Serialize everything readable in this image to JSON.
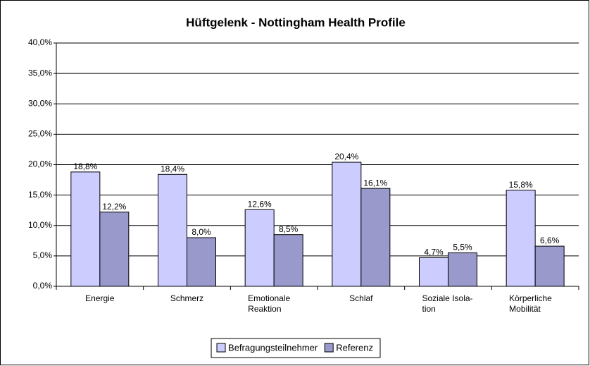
{
  "chart_data": {
    "type": "bar",
    "title": "Hüftgelenk - Nottingham Health Profile",
    "categories": [
      "Energie",
      "Schmerz",
      "Emotionale\nReaktion",
      "Schlaf",
      "Soziale Isola-\ntion",
      "Körperliche\nMobilität"
    ],
    "series": [
      {
        "name": "Befragungsteilnehmer",
        "color": "#ccccff",
        "values": [
          18.8,
          18.4,
          12.6,
          20.4,
          4.7,
          15.8
        ],
        "value_labels": [
          "18,8%",
          "18,4%",
          "12,6%",
          "20,4%",
          "4,7%",
          "15,8%"
        ]
      },
      {
        "name": "Referenz",
        "color": "#9999cc",
        "values": [
          12.2,
          8.0,
          8.5,
          16.1,
          5.5,
          6.6
        ],
        "value_labels": [
          "12,2%",
          "8,0%",
          "8,5%",
          "16,1%",
          "5,5%",
          "6,6%"
        ]
      }
    ],
    "ylim": [
      0,
      40
    ],
    "yticks": [
      {
        "value": 0,
        "label": "0,0%"
      },
      {
        "value": 5,
        "label": "5,0%"
      },
      {
        "value": 10,
        "label": "10,0%"
      },
      {
        "value": 15,
        "label": "15,0%"
      },
      {
        "value": 20,
        "label": "20,0%"
      },
      {
        "value": 25,
        "label": "25,0%"
      },
      {
        "value": 30,
        "label": "30,0%"
      },
      {
        "value": 35,
        "label": "35,0%"
      },
      {
        "value": 40,
        "label": "40,0%"
      }
    ],
    "grid": true,
    "legend": "bottom"
  }
}
